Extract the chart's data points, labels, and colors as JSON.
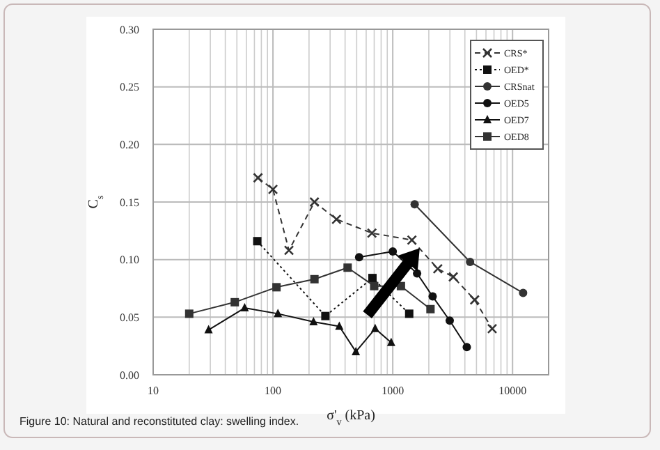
{
  "chart_data": {
    "type": "line",
    "xlabel": "σ'$_{v}$ (kPa)",
    "ylabel": "C$_{s}$",
    "log": "x",
    "grid": true,
    "legend": "top right",
    "xlim": [
      10,
      20000
    ],
    "xticks": [
      10,
      100,
      1000,
      10000
    ],
    "ylim": [
      0,
      0.3
    ],
    "yticks": [
      {
        "value": 0,
        "label": "0.00"
      },
      {
        "value": 0.05,
        "label": "0.05"
      },
      {
        "value": 0.1,
        "label": "0.10"
      },
      {
        "value": 0.15,
        "label": "0.15"
      },
      {
        "value": 0.2,
        "label": "0.20"
      },
      {
        "value": 0.25,
        "label": "0.25"
      },
      {
        "value": 0.3,
        "label": "0.30"
      }
    ],
    "series": [
      {
        "name": "CRS*",
        "color": "#333333",
        "line_style": "dashed",
        "marker": "cross",
        "x": [
          75,
          100,
          136,
          222,
          339,
          670,
          1445,
          2377,
          3200,
          4830,
          6760
        ],
        "values": [
          0.171,
          0.161,
          0.108,
          0.15,
          0.135,
          0.123,
          0.117,
          0.092,
          0.085,
          0.065,
          0.04
        ]
      },
      {
        "name": "OED*",
        "color": "#111111",
        "line_style": "dotted",
        "marker": "square",
        "x": [
          74,
          274,
          677,
          1372
        ],
        "values": [
          0.116,
          0.051,
          0.084,
          0.053
        ]
      },
      {
        "name": "CRSnat",
        "color": "#333333",
        "line_style": "solid",
        "marker": "circle",
        "x": [
          1524,
          4420,
          12250
        ],
        "values": [
          0.148,
          0.098,
          0.071
        ]
      },
      {
        "name": "OED5",
        "color": "#111111",
        "line_style": "solid",
        "marker": "circle",
        "x": [
          524,
          1000,
          1596,
          2153,
          2990,
          4150
        ],
        "values": [
          0.102,
          0.107,
          0.088,
          0.068,
          0.047,
          0.024
        ]
      },
      {
        "name": "OED7",
        "color": "#111111",
        "line_style": "solid",
        "marker": "triangle",
        "x": [
          29,
          58,
          110,
          218,
          358,
          492,
          713,
          970
        ],
        "values": [
          0.039,
          0.058,
          0.053,
          0.046,
          0.042,
          0.02,
          0.04,
          0.028
        ]
      },
      {
        "name": "OED8",
        "color": "#333333",
        "line_style": "solid",
        "marker": "square",
        "x": [
          20,
          48,
          107,
          222,
          420,
          700,
          1170,
          2065
        ],
        "values": [
          0.053,
          0.063,
          0.076,
          0.083,
          0.093,
          0.077,
          0.077,
          0.057
        ]
      }
    ],
    "annotations": [
      "Figure 10: Natural and reconstituted clay: swelling index."
    ]
  }
}
